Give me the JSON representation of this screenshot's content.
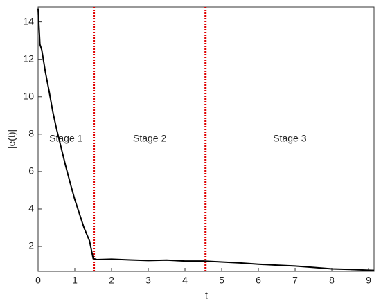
{
  "chart_data": {
    "type": "line",
    "xlabel": "t",
    "ylabel": "|e(t)|",
    "x": [
      0,
      0.05,
      0.1,
      0.2,
      0.3,
      0.4,
      0.5,
      0.6,
      0.75,
      0.9,
      1.0,
      1.1,
      1.25,
      1.4,
      1.5,
      1.6,
      2.0,
      2.5,
      3.0,
      3.5,
      4.0,
      4.5,
      5.0,
      5.5,
      6.0,
      6.5,
      7.0,
      7.5,
      8.0,
      8.5,
      9.0,
      9.15
    ],
    "series": [
      {
        "color": "#000000",
        "values": [
          14.7,
          12.8,
          12.5,
          11.3,
          10.3,
          9.2,
          8.3,
          7.5,
          6.3,
          5.2,
          4.5,
          3.9,
          3.0,
          2.3,
          1.35,
          1.3,
          1.32,
          1.28,
          1.25,
          1.27,
          1.22,
          1.22,
          1.17,
          1.12,
          1.05,
          1.0,
          0.95,
          0.88,
          0.8,
          0.77,
          0.73,
          0.72
        ]
      }
    ],
    "xlim": [
      0,
      9.15
    ],
    "ylim": [
      0.67,
      14.8
    ],
    "xticks": [
      0,
      1,
      2,
      3,
      4,
      5,
      6,
      7,
      8,
      9
    ],
    "yticks": [
      2,
      4,
      6,
      8,
      10,
      12,
      14
    ],
    "vlines": {
      "color": "#e00000",
      "values": [
        1.52,
        4.56
      ]
    },
    "annotations": [
      {
        "text": "Stage 1",
        "color": "#1a1aa6"
      },
      {
        "text": "Stage 2",
        "color": "#d42020"
      },
      {
        "text": "Stage 3",
        "color": "#000000"
      }
    ]
  }
}
